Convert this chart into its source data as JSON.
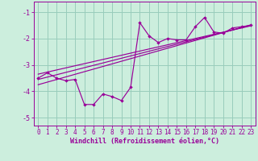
{
  "xlabel": "Windchill (Refroidissement éolien,°C)",
  "bg_color": "#cceedd",
  "line_color": "#990099",
  "grid_color": "#99ccbb",
  "xlim": [
    -0.5,
    23.5
  ],
  "ylim": [
    -5.3,
    -0.6
  ],
  "xticks": [
    0,
    1,
    2,
    3,
    4,
    5,
    6,
    7,
    8,
    9,
    10,
    11,
    12,
    13,
    14,
    15,
    16,
    17,
    18,
    19,
    20,
    21,
    22,
    23
  ],
  "yticks": [
    -5,
    -4,
    -3,
    -2,
    -1
  ],
  "scatter_x": [
    0,
    1,
    2,
    3,
    4,
    5,
    6,
    7,
    8,
    9,
    10,
    11,
    12,
    13,
    14,
    15,
    16,
    17,
    18,
    19,
    20,
    21,
    22,
    23
  ],
  "scatter_y": [
    -3.5,
    -3.3,
    -3.5,
    -3.6,
    -3.55,
    -4.5,
    -4.5,
    -4.1,
    -4.2,
    -4.35,
    -3.85,
    -1.4,
    -1.9,
    -2.15,
    -2.0,
    -2.05,
    -2.05,
    -1.55,
    -1.2,
    -1.75,
    -1.8,
    -1.6,
    -1.55,
    -1.5
  ],
  "line1_x": [
    0,
    23
  ],
  "line1_y": [
    -3.55,
    -1.5
  ],
  "line2_x": [
    0,
    23
  ],
  "line2_y": [
    -3.35,
    -1.52
  ],
  "line3_x": [
    0,
    23
  ],
  "line3_y": [
    -3.75,
    -1.48
  ],
  "tick_fontsize": 5.5,
  "xlabel_fontsize": 6.0
}
